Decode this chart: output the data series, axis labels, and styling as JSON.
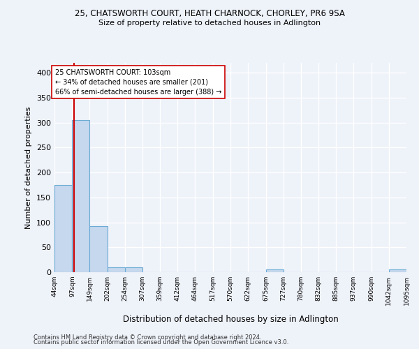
{
  "title1": "25, CHATSWORTH COURT, HEATH CHARNOCK, CHORLEY, PR6 9SA",
  "title2": "Size of property relative to detached houses in Adlington",
  "xlabel": "Distribution of detached houses by size in Adlington",
  "ylabel": "Number of detached properties",
  "bin_edges": [
    44,
    97,
    149,
    202,
    254,
    307,
    359,
    412,
    464,
    517,
    570,
    622,
    675,
    727,
    780,
    832,
    885,
    937,
    990,
    1042,
    1095
  ],
  "bar_heights": [
    175,
    305,
    93,
    10,
    10,
    0,
    0,
    0,
    0,
    0,
    0,
    0,
    5,
    0,
    0,
    0,
    0,
    0,
    0,
    5
  ],
  "bar_color": "#c5d8ee",
  "bar_edge_color": "#6aaad4",
  "vline_x": 103,
  "vline_color": "#cc0000",
  "ylim": [
    0,
    420
  ],
  "yticks": [
    0,
    50,
    100,
    150,
    200,
    250,
    300,
    350,
    400
  ],
  "annotation_text": "25 CHATSWORTH COURT: 103sqm\n← 34% of detached houses are smaller (201)\n66% of semi-detached houses are larger (388) →",
  "annotation_box_color": "#ffffff",
  "annotation_box_edge_color": "#cc0000",
  "footer1": "Contains HM Land Registry data © Crown copyright and database right 2024.",
  "footer2": "Contains public sector information licensed under the Open Government Licence v3.0.",
  "background_color": "#eef2f9",
  "grid_color": "#ffffff"
}
